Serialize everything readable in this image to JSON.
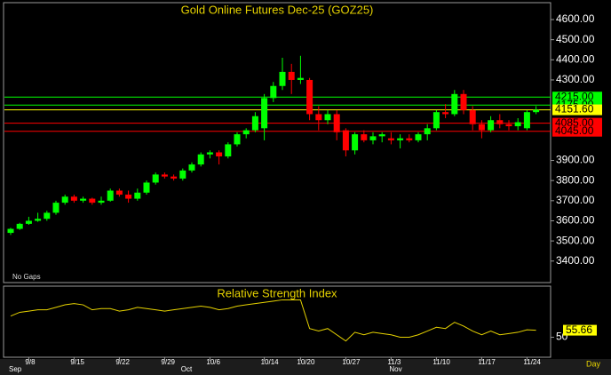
{
  "chart_data": [
    {
      "type": "candlestick",
      "title": "Gold Online Futures Dec-25 (GOZ25)",
      "note": "No Gaps",
      "x_unit": "Day",
      "categories": [
        null,
        null,
        "9/8",
        null,
        null,
        null,
        null,
        "9/15",
        null,
        null,
        null,
        null,
        "9/22",
        null,
        null,
        null,
        null,
        "9/29",
        null,
        null,
        null,
        null,
        "10/6",
        null,
        null,
        null,
        null,
        null,
        "10/14",
        null,
        null,
        null,
        "10/20",
        null,
        null,
        null,
        null,
        "10/27",
        null,
        null,
        null,
        null,
        "11/3",
        null,
        null,
        null,
        null,
        "11/10",
        null,
        null,
        null,
        null,
        "11/17",
        null,
        null,
        null,
        null,
        "11/24",
        null
      ],
      "months": [
        {
          "label": "Sep",
          "index": 0
        },
        {
          "label": "Oct",
          "index": 19
        },
        {
          "label": "Nov",
          "index": 42
        }
      ],
      "open": [
        3540,
        3560,
        3585,
        3600,
        3610,
        3640,
        3690,
        3720,
        3700,
        3710,
        3690,
        3700,
        3750,
        3730,
        3710,
        3740,
        3790,
        3830,
        3820,
        3810,
        3850,
        3880,
        3930,
        3940,
        3920,
        3980,
        4030,
        4050,
        4060,
        4210,
        4270,
        4340,
        4300,
        4300,
        4130,
        4100,
        4130,
        4050,
        3950,
        4030,
        4000,
        4020,
        4010,
        4000,
        4010,
        4000,
        4030,
        4060,
        4140,
        4130,
        4230,
        4150,
        4080,
        4050,
        4100,
        4080,
        4070,
        4060,
        4140
      ],
      "high": [
        3565,
        3590,
        3620,
        3640,
        3650,
        3700,
        3730,
        3730,
        3720,
        3715,
        3720,
        3760,
        3760,
        3750,
        3760,
        3800,
        3840,
        3840,
        3830,
        3860,
        3890,
        3940,
        3950,
        3950,
        3990,
        4040,
        4060,
        4140,
        4230,
        4290,
        4410,
        4380,
        4420,
        4310,
        4170,
        4150,
        4150,
        4060,
        4040,
        4050,
        4040,
        4040,
        4040,
        4030,
        4030,
        4040,
        4080,
        4150,
        4180,
        4250,
        4250,
        4170,
        4100,
        4120,
        4130,
        4100,
        4110,
        4150,
        4170
      ],
      "low": [
        3530,
        3555,
        3580,
        3595,
        3600,
        3630,
        3680,
        3690,
        3690,
        3680,
        3680,
        3695,
        3720,
        3690,
        3700,
        3730,
        3780,
        3810,
        3800,
        3800,
        3840,
        3870,
        3910,
        3880,
        3910,
        3970,
        4010,
        4040,
        4000,
        4190,
        4250,
        4230,
        4280,
        4100,
        4050,
        4080,
        4000,
        3920,
        3930,
        3990,
        3980,
        3990,
        3980,
        3960,
        3990,
        3990,
        4000,
        4050,
        4110,
        4120,
        4130,
        4050,
        4010,
        4040,
        4060,
        4050,
        4050,
        4050,
        4130
      ],
      "close": [
        3560,
        3585,
        3600,
        3610,
        3640,
        3690,
        3720,
        3700,
        3710,
        3690,
        3700,
        3750,
        3730,
        3710,
        3740,
        3790,
        3830,
        3820,
        3810,
        3850,
        3880,
        3930,
        3940,
        3920,
        3980,
        4030,
        4050,
        4120,
        4210,
        4270,
        4340,
        4300,
        4310,
        4130,
        4100,
        4130,
        4040,
        3950,
        4030,
        4000,
        4020,
        4030,
        4000,
        4010,
        4000,
        4030,
        4060,
        4140,
        4130,
        4230,
        4150,
        4080,
        4050,
        4100,
        4080,
        4070,
        4090,
        4140,
        4151.6
      ],
      "up_color": "#00ff00",
      "down_color": "#ff0000",
      "levels": [
        {
          "value": 4215,
          "label": "4215.00",
          "color": "#00ff00"
        },
        {
          "value": 4175,
          "label": "4175.00",
          "color": "#00ff00"
        },
        {
          "value": 4151.6,
          "label": "4151.60",
          "color": "#ffff00"
        },
        {
          "value": 4085,
          "label": "4085.00",
          "color": "#ff0000"
        },
        {
          "value": 4045,
          "label": "4045.00",
          "color": "#ff0000"
        }
      ],
      "ylim": [
        3293,
        4684
      ],
      "yticks": [
        {
          "value": 3400,
          "label": "3400.00"
        },
        {
          "value": 3500,
          "label": "3500.00"
        },
        {
          "value": 3600,
          "label": "3600.00"
        },
        {
          "value": 3700,
          "label": "3700.00"
        },
        {
          "value": 3800,
          "label": "3800.00"
        },
        {
          "value": 3900,
          "label": "3900.00"
        },
        {
          "value": 4300,
          "label": "4300.00"
        },
        {
          "value": 4400,
          "label": "4400.00"
        },
        {
          "value": 4500,
          "label": "4500.00"
        },
        {
          "value": 4600,
          "label": "4600.00"
        }
      ]
    },
    {
      "type": "line",
      "title": "Relative Strength Index",
      "color": "#e6d200",
      "values": [
        67,
        70,
        71,
        72,
        72,
        74,
        76,
        77,
        76,
        72,
        73,
        73,
        71,
        72,
        74,
        73,
        72,
        71,
        72,
        73,
        74,
        75,
        74,
        72,
        73,
        75,
        76,
        77,
        78,
        79,
        80,
        80,
        80,
        57,
        55,
        57,
        52,
        47,
        54,
        52,
        54,
        53,
        52,
        50,
        50,
        52,
        55,
        58,
        57,
        62,
        59,
        55,
        52,
        55,
        52,
        53,
        54,
        56,
        55.66
      ],
      "ylim": [
        34,
        91
      ],
      "yticks": [
        50
      ]
    }
  ]
}
